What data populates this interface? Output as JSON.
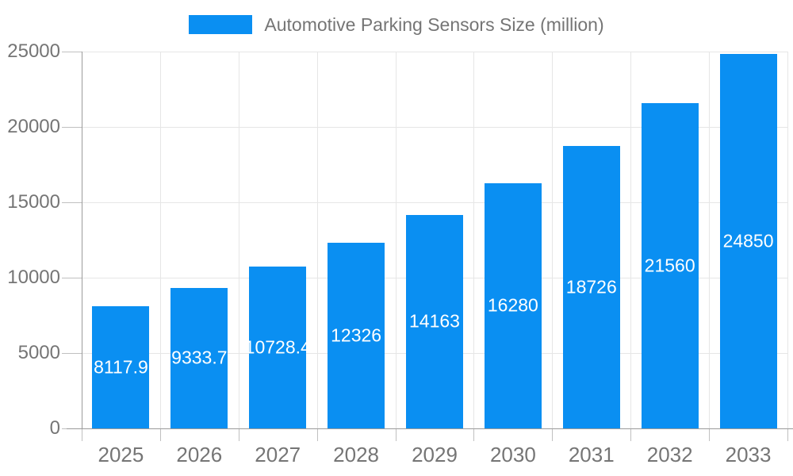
{
  "legend": {
    "label": "Automotive Parking Sensors Size (million)"
  },
  "colors": {
    "bar": "#0a8ff2",
    "bar_label": "#ffffff",
    "grid": "#e6e6e6",
    "axis": "#9b9b9b",
    "tick": "#c0c0c0",
    "text": "#757575",
    "background": "#ffffff"
  },
  "chart_data": {
    "type": "bar",
    "title": "Automotive Parking Sensors Size (million)",
    "categories": [
      "2025",
      "2026",
      "2027",
      "2028",
      "2029",
      "2030",
      "2031",
      "2032",
      "2033"
    ],
    "values": [
      8117.9,
      9333.7,
      10728.4,
      12326,
      14163,
      16280,
      18726,
      21560,
      24850
    ],
    "series_name": "Automotive Parking Sensors Size (million)",
    "xlabel": "",
    "ylabel": "",
    "ylim": [
      0,
      25000
    ],
    "ytick_step": 5000,
    "ytick_labels": [
      "0",
      "5000",
      "10000",
      "15000",
      "20000",
      "25000"
    ],
    "grid": true,
    "legend_position": "top",
    "value_labels": "inside-center"
  }
}
